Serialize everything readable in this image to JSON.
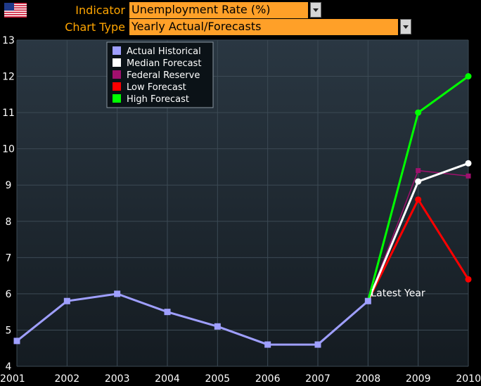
{
  "header": {
    "indicator_label": "Indicator",
    "indicator_value": "Unemployment Rate (%)",
    "chart_type_label": "Chart Type",
    "chart_type_value": "Yearly Actual/Forecasts",
    "field_color": "#ffa028",
    "label_color": "#ffa500"
  },
  "chart_data": {
    "type": "line",
    "title": "",
    "xlabel": "",
    "ylabel": "",
    "categories": [
      "2001",
      "2002",
      "2003",
      "2004",
      "2005",
      "2006",
      "2007",
      "2008",
      "2009",
      "2010"
    ],
    "ylim": [
      4,
      13
    ],
    "yticks": [
      "4",
      "5",
      "6",
      "7",
      "8",
      "9",
      "10",
      "11",
      "12",
      "13"
    ],
    "grid": true,
    "legend_position": "top-left",
    "annotation": {
      "text": "Latest Year",
      "x": "2008",
      "y": 5.85
    },
    "series": [
      {
        "name": "Actual Historical",
        "color": "#9f9fff",
        "marker": "square",
        "x": [
          "2001",
          "2002",
          "2003",
          "2004",
          "2005",
          "2006",
          "2007",
          "2008"
        ],
        "values": [
          4.7,
          5.8,
          6.0,
          5.5,
          5.1,
          4.6,
          4.6,
          5.8
        ]
      },
      {
        "name": "Median Forecast",
        "color": "#ffffff",
        "marker": "circle",
        "x": [
          "2008",
          "2009",
          "2010"
        ],
        "values": [
          5.8,
          9.1,
          9.6
        ]
      },
      {
        "name": "Federal Reserve",
        "color": "#a0106e",
        "marker": "square",
        "x": [
          "2008",
          "2009",
          "2010"
        ],
        "values": [
          5.8,
          9.4,
          9.25
        ]
      },
      {
        "name": "Low Forecast",
        "color": "#ff0000",
        "marker": "circle",
        "x": [
          "2008",
          "2009",
          "2010"
        ],
        "values": [
          5.8,
          8.6,
          6.4
        ]
      },
      {
        "name": "High Forecast",
        "color": "#00ff00",
        "marker": "circle",
        "x": [
          "2008",
          "2009",
          "2010"
        ],
        "values": [
          5.8,
          11.0,
          12.0
        ]
      }
    ]
  }
}
